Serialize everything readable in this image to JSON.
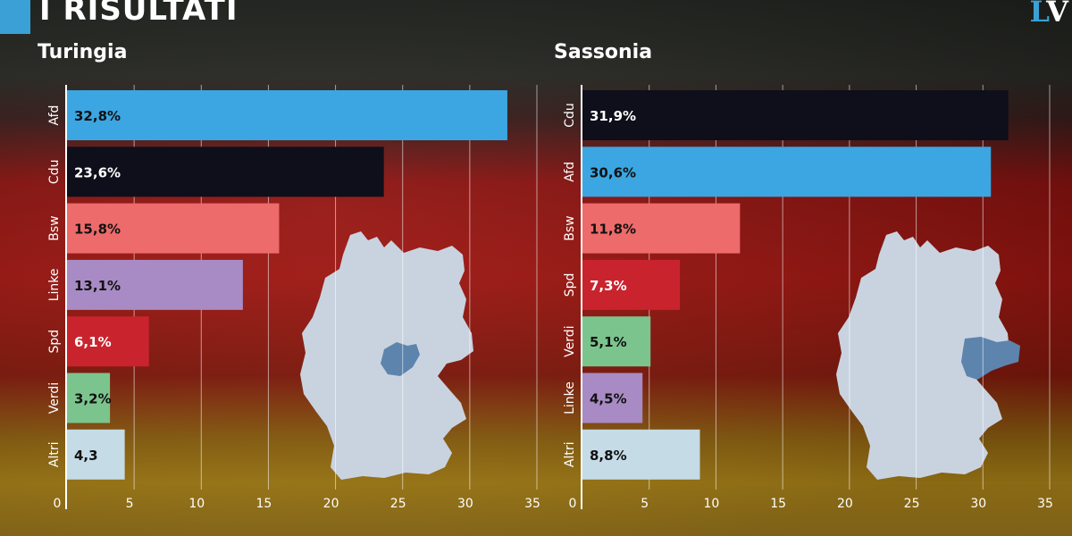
{
  "header": {
    "title": "I RISULTATI",
    "brand_first": "L",
    "brand_second": "V"
  },
  "colors": {
    "afd": "#3ba6e1",
    "cdu": "#0e0f1a",
    "bsw": "#ee6b6b",
    "linke": "#a88bc4",
    "spd": "#c9242e",
    "verdi": "#7cc48e",
    "altri": "#c5dbe6"
  },
  "chart_data": [
    {
      "type": "bar",
      "orientation": "horizontal",
      "title": "Turingia",
      "categories": [
        "Afd",
        "Cdu",
        "Bsw",
        "Linke",
        "Spd",
        "Verdi",
        "Altri"
      ],
      "values": [
        32.8,
        23.6,
        15.8,
        13.1,
        6.1,
        3.2,
        4.3
      ],
      "labels": [
        "32,8%",
        "23,6%",
        "15,8%",
        "13,1%",
        "6,1%",
        "3,2%",
        "4,3"
      ],
      "colors": [
        "#3ba6e1",
        "#0e0f1a",
        "#ee6b6b",
        "#a88bc4",
        "#c9242e",
        "#7cc48e",
        "#c5dbe6"
      ],
      "label_colors": [
        "#111111",
        "#ffffff",
        "#111111",
        "#111111",
        "#ffffff",
        "#111111",
        "#111111"
      ],
      "xlim": [
        0,
        35
      ],
      "xticks": [
        0,
        5,
        10,
        15,
        20,
        25,
        30,
        35
      ],
      "grid": true
    },
    {
      "type": "bar",
      "orientation": "horizontal",
      "title": "Sassonia",
      "categories": [
        "Cdu",
        "Afd",
        "Bsw",
        "Spd",
        "Verdi",
        "Linke",
        "Altri"
      ],
      "values": [
        31.9,
        30.6,
        11.8,
        7.3,
        5.1,
        4.5,
        8.8
      ],
      "labels": [
        "31,9%",
        "30,6%",
        "11,8%",
        "7,3%",
        "5,1%",
        "4,5%",
        "8,8%"
      ],
      "colors": [
        "#0e0f1a",
        "#3ba6e1",
        "#ee6b6b",
        "#c9242e",
        "#7cc48e",
        "#a88bc4",
        "#c5dbe6"
      ],
      "label_colors": [
        "#ffffff",
        "#111111",
        "#111111",
        "#ffffff",
        "#111111",
        "#111111",
        "#111111"
      ],
      "xlim": [
        0,
        35
      ],
      "xticks": [
        0,
        5,
        10,
        15,
        20,
        25,
        30,
        35
      ],
      "grid": true
    }
  ]
}
